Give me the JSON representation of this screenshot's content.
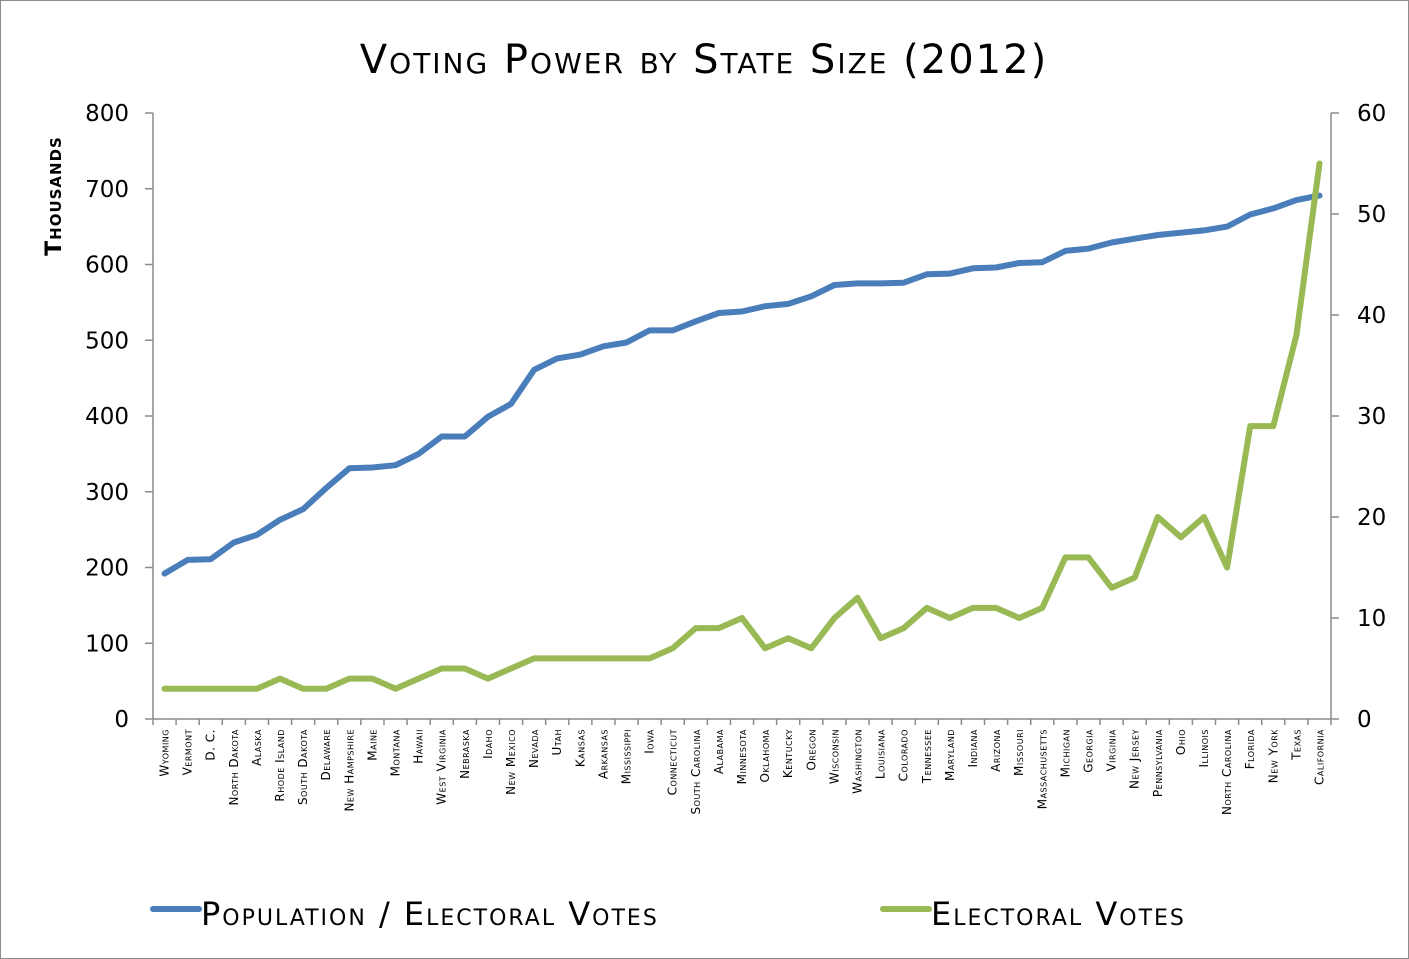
{
  "chart_data": {
    "type": "line",
    "title": "Voting Power by State Size (2012)",
    "ylabel_left": "Thousands",
    "ylim_left": [
      0,
      800
    ],
    "yticks_left": [
      0,
      100,
      200,
      300,
      400,
      500,
      600,
      700,
      800
    ],
    "ylim_right": [
      0,
      60
    ],
    "yticks_right": [
      0,
      10,
      20,
      30,
      40,
      50,
      60
    ],
    "grid": false,
    "legend_position": "bottom",
    "categories": [
      "Wyoming",
      "Vermont",
      "D. C.",
      "North Dakota",
      "Alaska",
      "Rhode Island",
      "South Dakota",
      "Delaware",
      "New Hampshire",
      "Maine",
      "Montana",
      "Hawaii",
      "West Virginia",
      "Nebraska",
      "Idaho",
      "New Mexico",
      "Nevada",
      "Utah",
      "Kansas",
      "Arkansas",
      "Mississippi",
      "Iowa",
      "Connecticut",
      "South Carolina",
      "Alabama",
      "Minnesota",
      "Oklahoma",
      "Kentucky",
      "Oregon",
      "Wisconsin",
      "Washington",
      "Louisiana",
      "Colorado",
      "Tennessee",
      "Maryland",
      "Indiana",
      "Arizona",
      "Missouri",
      "Massachusetts",
      "Michigan",
      "Georgia",
      "Virginia",
      "New Jersey",
      "Pennsylvania",
      "Ohio",
      "Illinois",
      "North Carolina",
      "Florida",
      "New York",
      "Texas",
      "California"
    ],
    "series": [
      {
        "name": "Population / Electoral Votes",
        "axis": "left",
        "color": "#4a7ebb",
        "values": [
          192,
          210,
          211,
          233,
          243,
          263,
          277,
          305,
          331,
          332,
          335,
          350,
          373,
          373,
          399,
          416,
          461,
          476,
          481,
          492,
          497,
          513,
          513,
          525,
          536,
          538,
          545,
          548,
          558,
          573,
          575,
          575,
          576,
          587,
          588,
          595,
          596,
          602,
          603,
          618,
          621,
          629,
          634,
          639,
          642,
          645,
          650,
          666,
          674,
          685,
          691
        ]
      },
      {
        "name": "Electoral Votes",
        "axis": "right",
        "color": "#98b954",
        "values": [
          3,
          3,
          3,
          3,
          3,
          4,
          3,
          3,
          4,
          4,
          3,
          4,
          5,
          5,
          4,
          5,
          6,
          6,
          6,
          6,
          6,
          6,
          7,
          9,
          9,
          10,
          7,
          8,
          7,
          10,
          12,
          8,
          9,
          11,
          10,
          11,
          11,
          10,
          11,
          16,
          16,
          13,
          14,
          20,
          18,
          20,
          15,
          29,
          29,
          38,
          55
        ]
      }
    ]
  }
}
